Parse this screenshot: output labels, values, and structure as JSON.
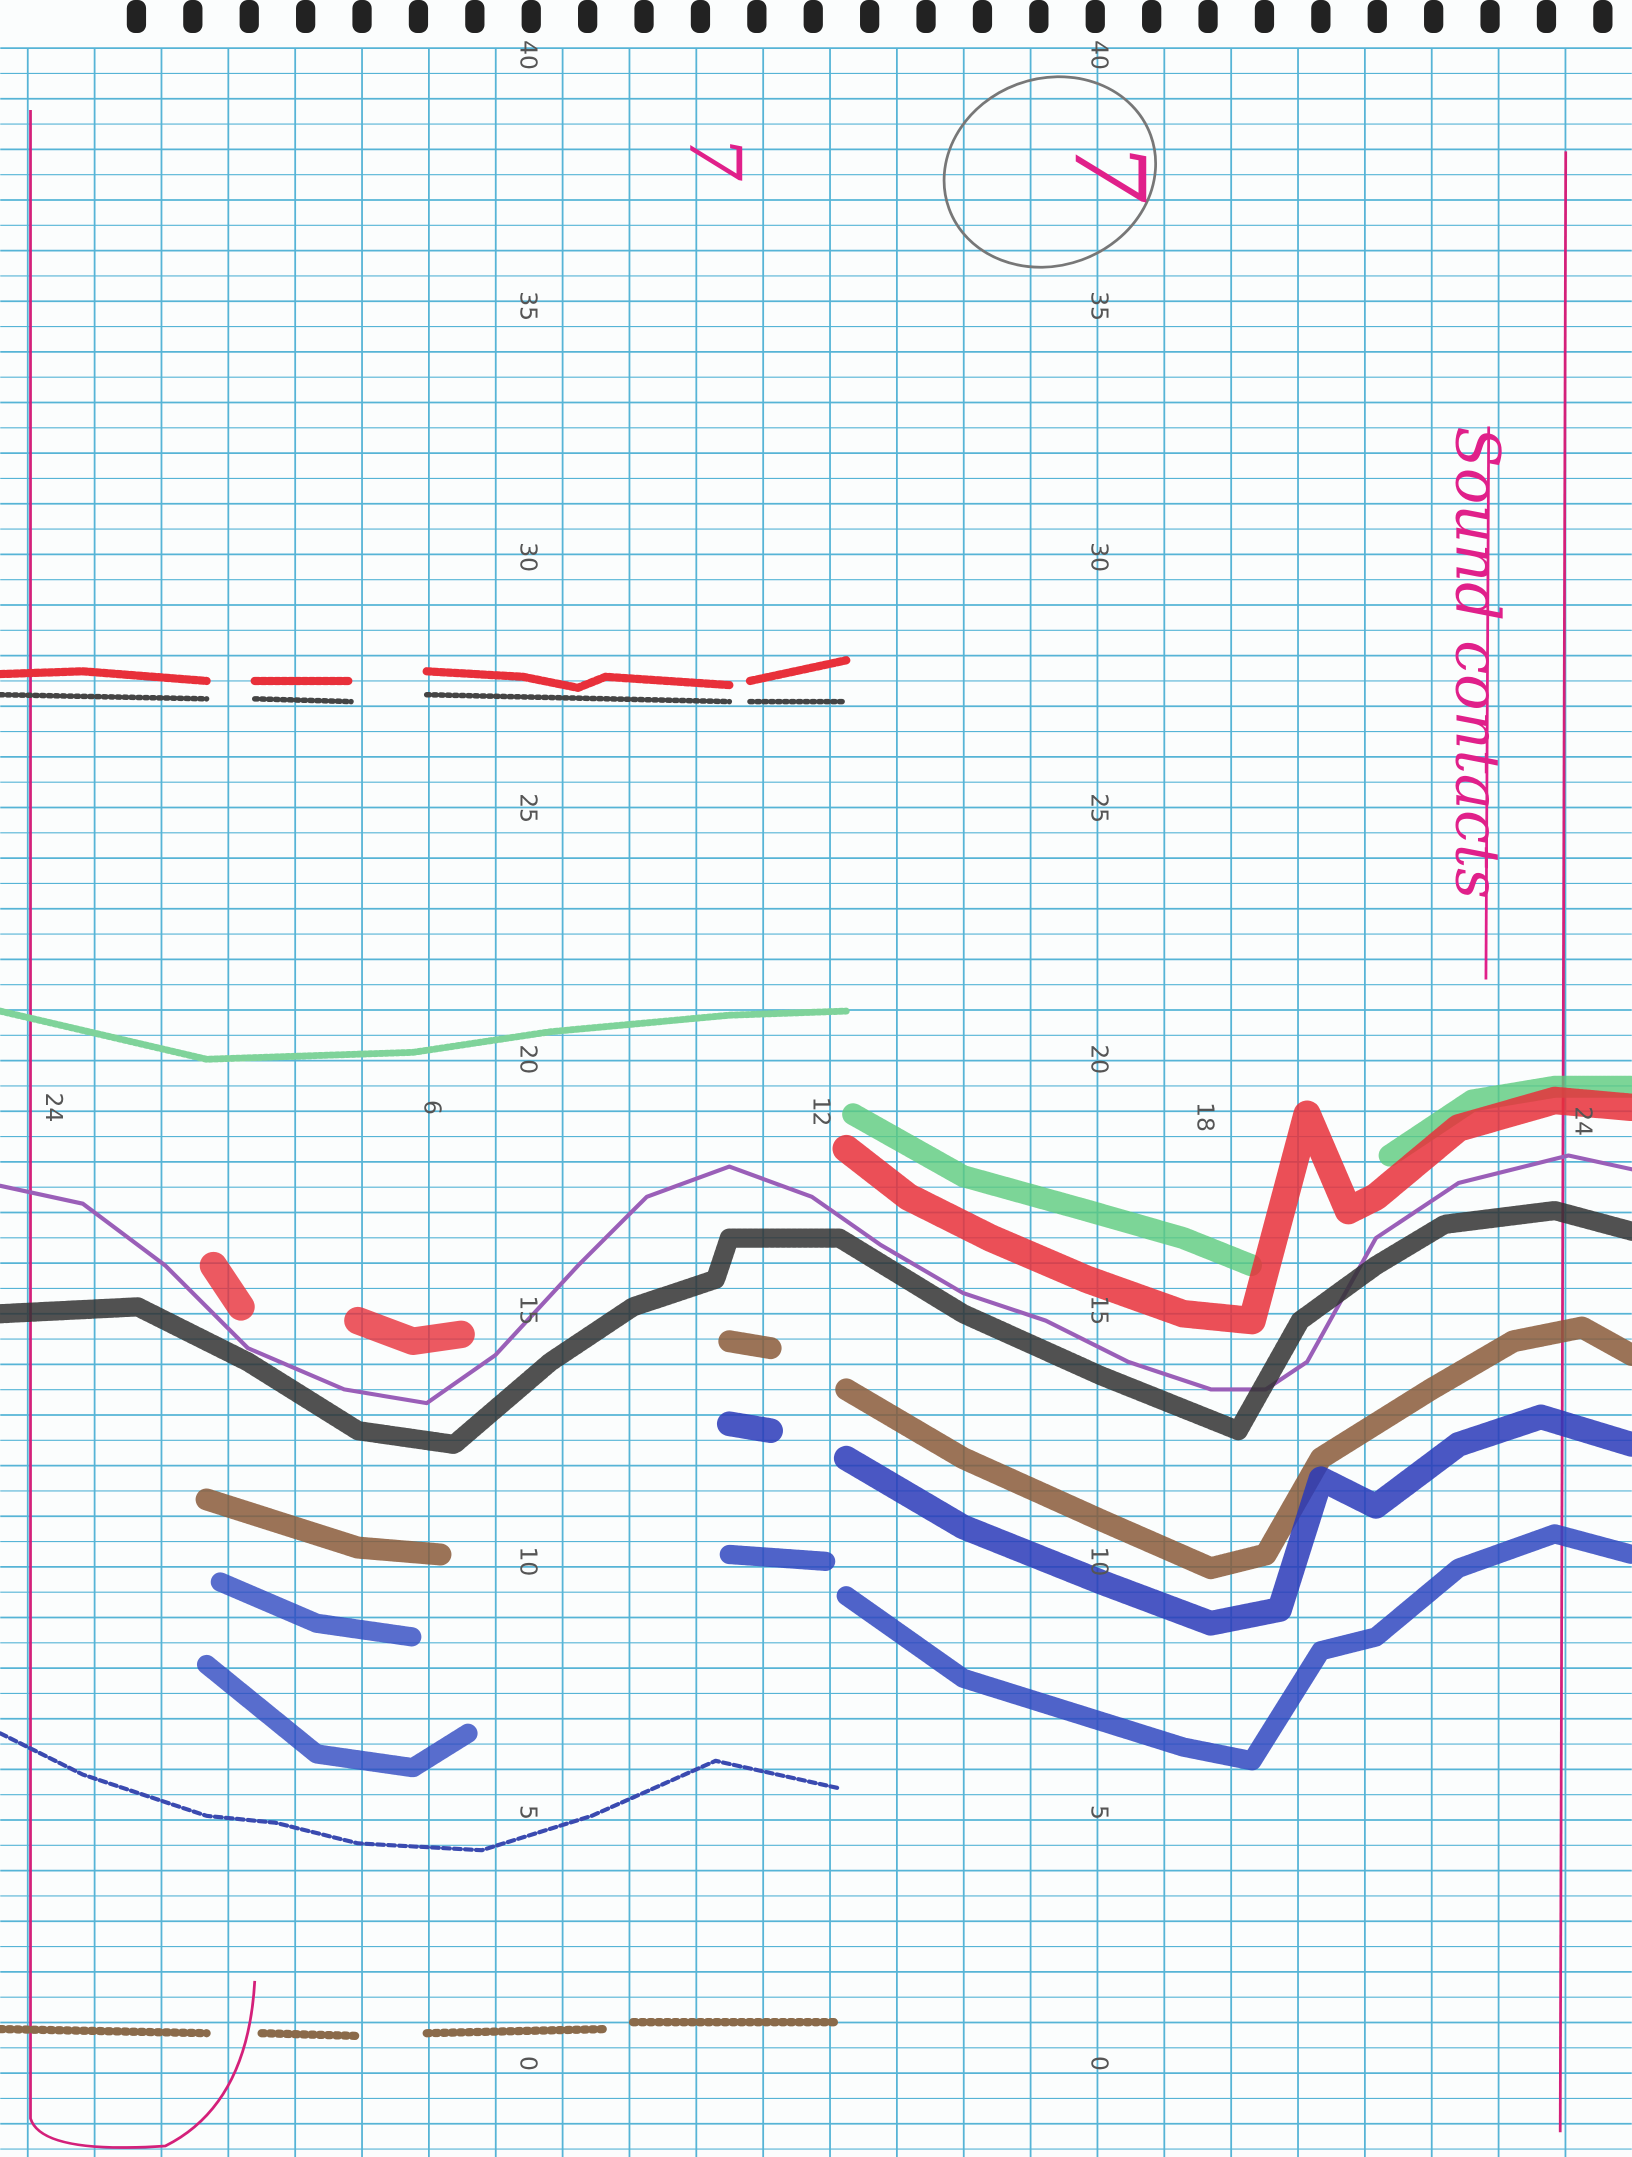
{
  "depth_labels_left": [
    "40",
    "35",
    "30",
    "25",
    "20",
    "15",
    "10",
    "5",
    "0"
  ],
  "depth_labels_right": [
    "40",
    "35",
    "30",
    "25",
    "20",
    "15",
    "10",
    "5",
    "0"
  ],
  "time_labels": [
    "24",
    "6",
    "12",
    "18",
    "24"
  ],
  "annotations": {
    "note": "Sound contacts",
    "mark_1": "7",
    "mark_2": "7"
  }
}
